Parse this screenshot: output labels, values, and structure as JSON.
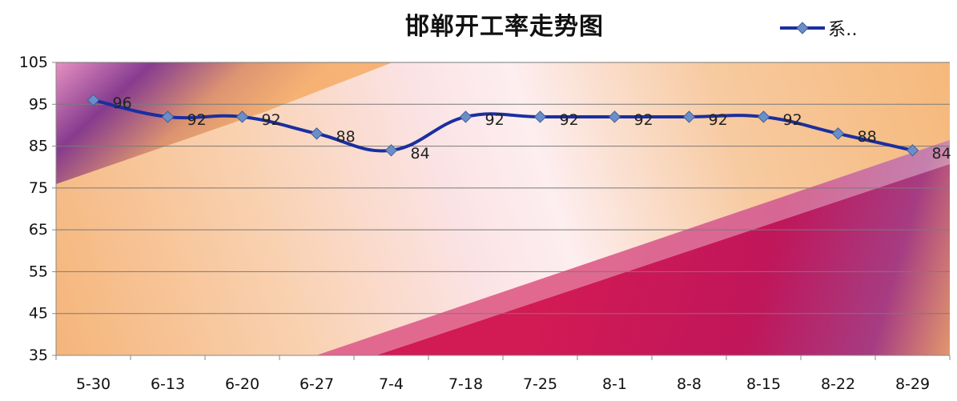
{
  "chart_data": {
    "type": "line",
    "title": "邯郸开工率走势图",
    "categories": [
      "5-30",
      "6-13",
      "6-20",
      "6-27",
      "7-4",
      "7-18",
      "7-25",
      "8-1",
      "8-8",
      "8-15",
      "8-22",
      "8-29"
    ],
    "series": [
      {
        "name": "系‥",
        "values": [
          96,
          92,
          92,
          88,
          84,
          92,
          92,
          92,
          92,
          92,
          88,
          84
        ]
      }
    ],
    "data_labels": [
      "96",
      "92",
      "92",
      "88",
      "84",
      "92",
      "92",
      "92",
      "92",
      "92",
      "88",
      "84"
    ],
    "yticks": [
      "105",
      "95",
      "85",
      "75",
      "65",
      "55",
      "45",
      "35"
    ],
    "ylim": [
      35,
      105
    ],
    "grid": true,
    "legend_position": "top-right",
    "colors": {
      "line": "#1a2fa0",
      "marker": "#6b8ec8",
      "axis": "#888888",
      "grid": "#7a7a7a"
    }
  }
}
